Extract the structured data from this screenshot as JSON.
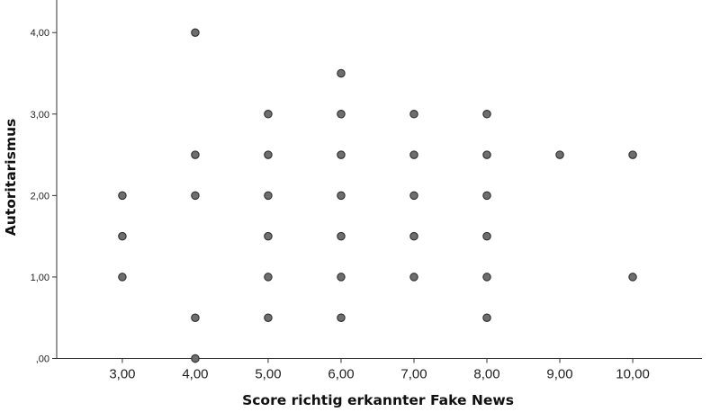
{
  "chart_data": {
    "type": "scatter",
    "xlabel": "Score richtig erkannter Fake News",
    "ylabel": "Autoritarismus",
    "xlim": [
      2.1,
      10.95
    ],
    "ylim": [
      0,
      4.4
    ],
    "xticks": [
      3,
      4,
      5,
      6,
      7,
      8,
      9,
      10
    ],
    "xtick_labels": [
      "3,00",
      "4,00",
      "5,00",
      "6,00",
      "7,00",
      "8,00",
      "9,00",
      "10,00"
    ],
    "yticks": [
      0,
      1,
      2,
      3,
      4
    ],
    "ytick_labels": [
      ",00",
      "1,00",
      "2,00",
      "3,00",
      "4,00"
    ],
    "grid": false,
    "marker_color": "#6e6e6e",
    "points": [
      {
        "x": 3,
        "y": 2
      },
      {
        "x": 3,
        "y": 1.5
      },
      {
        "x": 3,
        "y": 1
      },
      {
        "x": 4,
        "y": 4
      },
      {
        "x": 4,
        "y": 2.5
      },
      {
        "x": 4,
        "y": 2
      },
      {
        "x": 4,
        "y": 0.5
      },
      {
        "x": 4,
        "y": 0
      },
      {
        "x": 5,
        "y": 3
      },
      {
        "x": 5,
        "y": 2.5
      },
      {
        "x": 5,
        "y": 2
      },
      {
        "x": 5,
        "y": 1.5
      },
      {
        "x": 5,
        "y": 1
      },
      {
        "x": 5,
        "y": 0.5
      },
      {
        "x": 6,
        "y": 3.5
      },
      {
        "x": 6,
        "y": 3
      },
      {
        "x": 6,
        "y": 2.5
      },
      {
        "x": 6,
        "y": 2
      },
      {
        "x": 6,
        "y": 1.5
      },
      {
        "x": 6,
        "y": 1
      },
      {
        "x": 6,
        "y": 0.5
      },
      {
        "x": 7,
        "y": 3
      },
      {
        "x": 7,
        "y": 2.5
      },
      {
        "x": 7,
        "y": 2
      },
      {
        "x": 7,
        "y": 1.5
      },
      {
        "x": 7,
        "y": 1
      },
      {
        "x": 8,
        "y": 3
      },
      {
        "x": 8,
        "y": 2.5
      },
      {
        "x": 8,
        "y": 2
      },
      {
        "x": 8,
        "y": 1.5
      },
      {
        "x": 8,
        "y": 1
      },
      {
        "x": 8,
        "y": 0.5
      },
      {
        "x": 9,
        "y": 2.5
      },
      {
        "x": 10,
        "y": 2.5
      },
      {
        "x": 10,
        "y": 1
      }
    ]
  }
}
